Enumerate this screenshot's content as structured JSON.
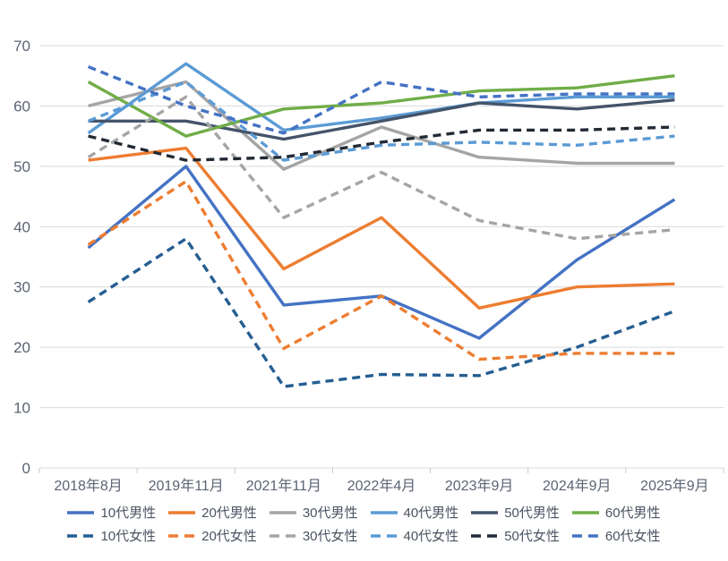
{
  "chart_data": {
    "type": "line",
    "title": "",
    "xlabel": "",
    "ylabel": "",
    "ylim": [
      0,
      70
    ],
    "y_tick_step": 10,
    "y_ticks": [
      0,
      10,
      20,
      30,
      40,
      50,
      60,
      70
    ],
    "grid": true,
    "legend_position": "bottom",
    "categories": [
      "2018年8月",
      "2019年11月",
      "2021年11月",
      "2022年4月",
      "2023年9月",
      "2024年9月",
      "2025年9月"
    ],
    "series": [
      {
        "name": "10代男性",
        "color": "#4472C4",
        "style": "solid",
        "values": [
          36.5,
          50,
          27,
          28.5,
          21.5,
          34.5,
          44.5
        ]
      },
      {
        "name": "20代男性",
        "color": "#ED7D31",
        "style": "solid",
        "values": [
          51,
          53,
          33,
          41.5,
          26.5,
          30,
          30.5
        ]
      },
      {
        "name": "30代男性",
        "color": "#A5A5A5",
        "style": "solid",
        "values": [
          60,
          64,
          49.5,
          56.5,
          51.5,
          50.5,
          50.5
        ]
      },
      {
        "name": "40代男性",
        "color": "#5B9BD5",
        "style": "solid",
        "values": [
          55.5,
          67,
          56,
          58,
          60.5,
          61.5,
          61.5
        ]
      },
      {
        "name": "50代男性",
        "color": "#44546A",
        "style": "solid",
        "values": [
          57.5,
          57.5,
          54.5,
          57.5,
          60.5,
          59.5,
          61
        ]
      },
      {
        "name": "60代男性",
        "color": "#70AD47",
        "style": "solid",
        "values": [
          64,
          55,
          59.5,
          60.5,
          62.5,
          63,
          65
        ]
      },
      {
        "name": "10代女性",
        "color": "#255E91",
        "style": "dashed",
        "values": [
          27.5,
          38,
          13.5,
          15.5,
          15.3,
          20,
          26
        ]
      },
      {
        "name": "20代女性",
        "color": "#ED7D31",
        "style": "dashed",
        "values": [
          37,
          47.5,
          19.8,
          28.5,
          18,
          19,
          19
        ]
      },
      {
        "name": "30代女性",
        "color": "#A5A5A5",
        "style": "dashed",
        "values": [
          51.5,
          61.5,
          41.5,
          49,
          41,
          38,
          39.5
        ]
      },
      {
        "name": "40代女性",
        "color": "#5B9BD5",
        "style": "dashed",
        "values": [
          57.5,
          64,
          51,
          53.5,
          54,
          53.5,
          55
        ]
      },
      {
        "name": "50代女性",
        "color": "#222A35",
        "style": "dashed",
        "values": [
          55,
          51,
          51.5,
          54,
          56,
          56,
          56.5
        ]
      },
      {
        "name": "60代女性",
        "color": "#4472C4",
        "style": "dashed",
        "values": [
          66.5,
          60,
          55.5,
          64,
          61.5,
          62,
          62
        ]
      }
    ]
  },
  "colors": {
    "gridline": "#D9D9D9",
    "axis": "#C3C9CF",
    "tick_text": "#5A6472",
    "legend_text": "#4A5362",
    "background": "#FFFFFF"
  }
}
